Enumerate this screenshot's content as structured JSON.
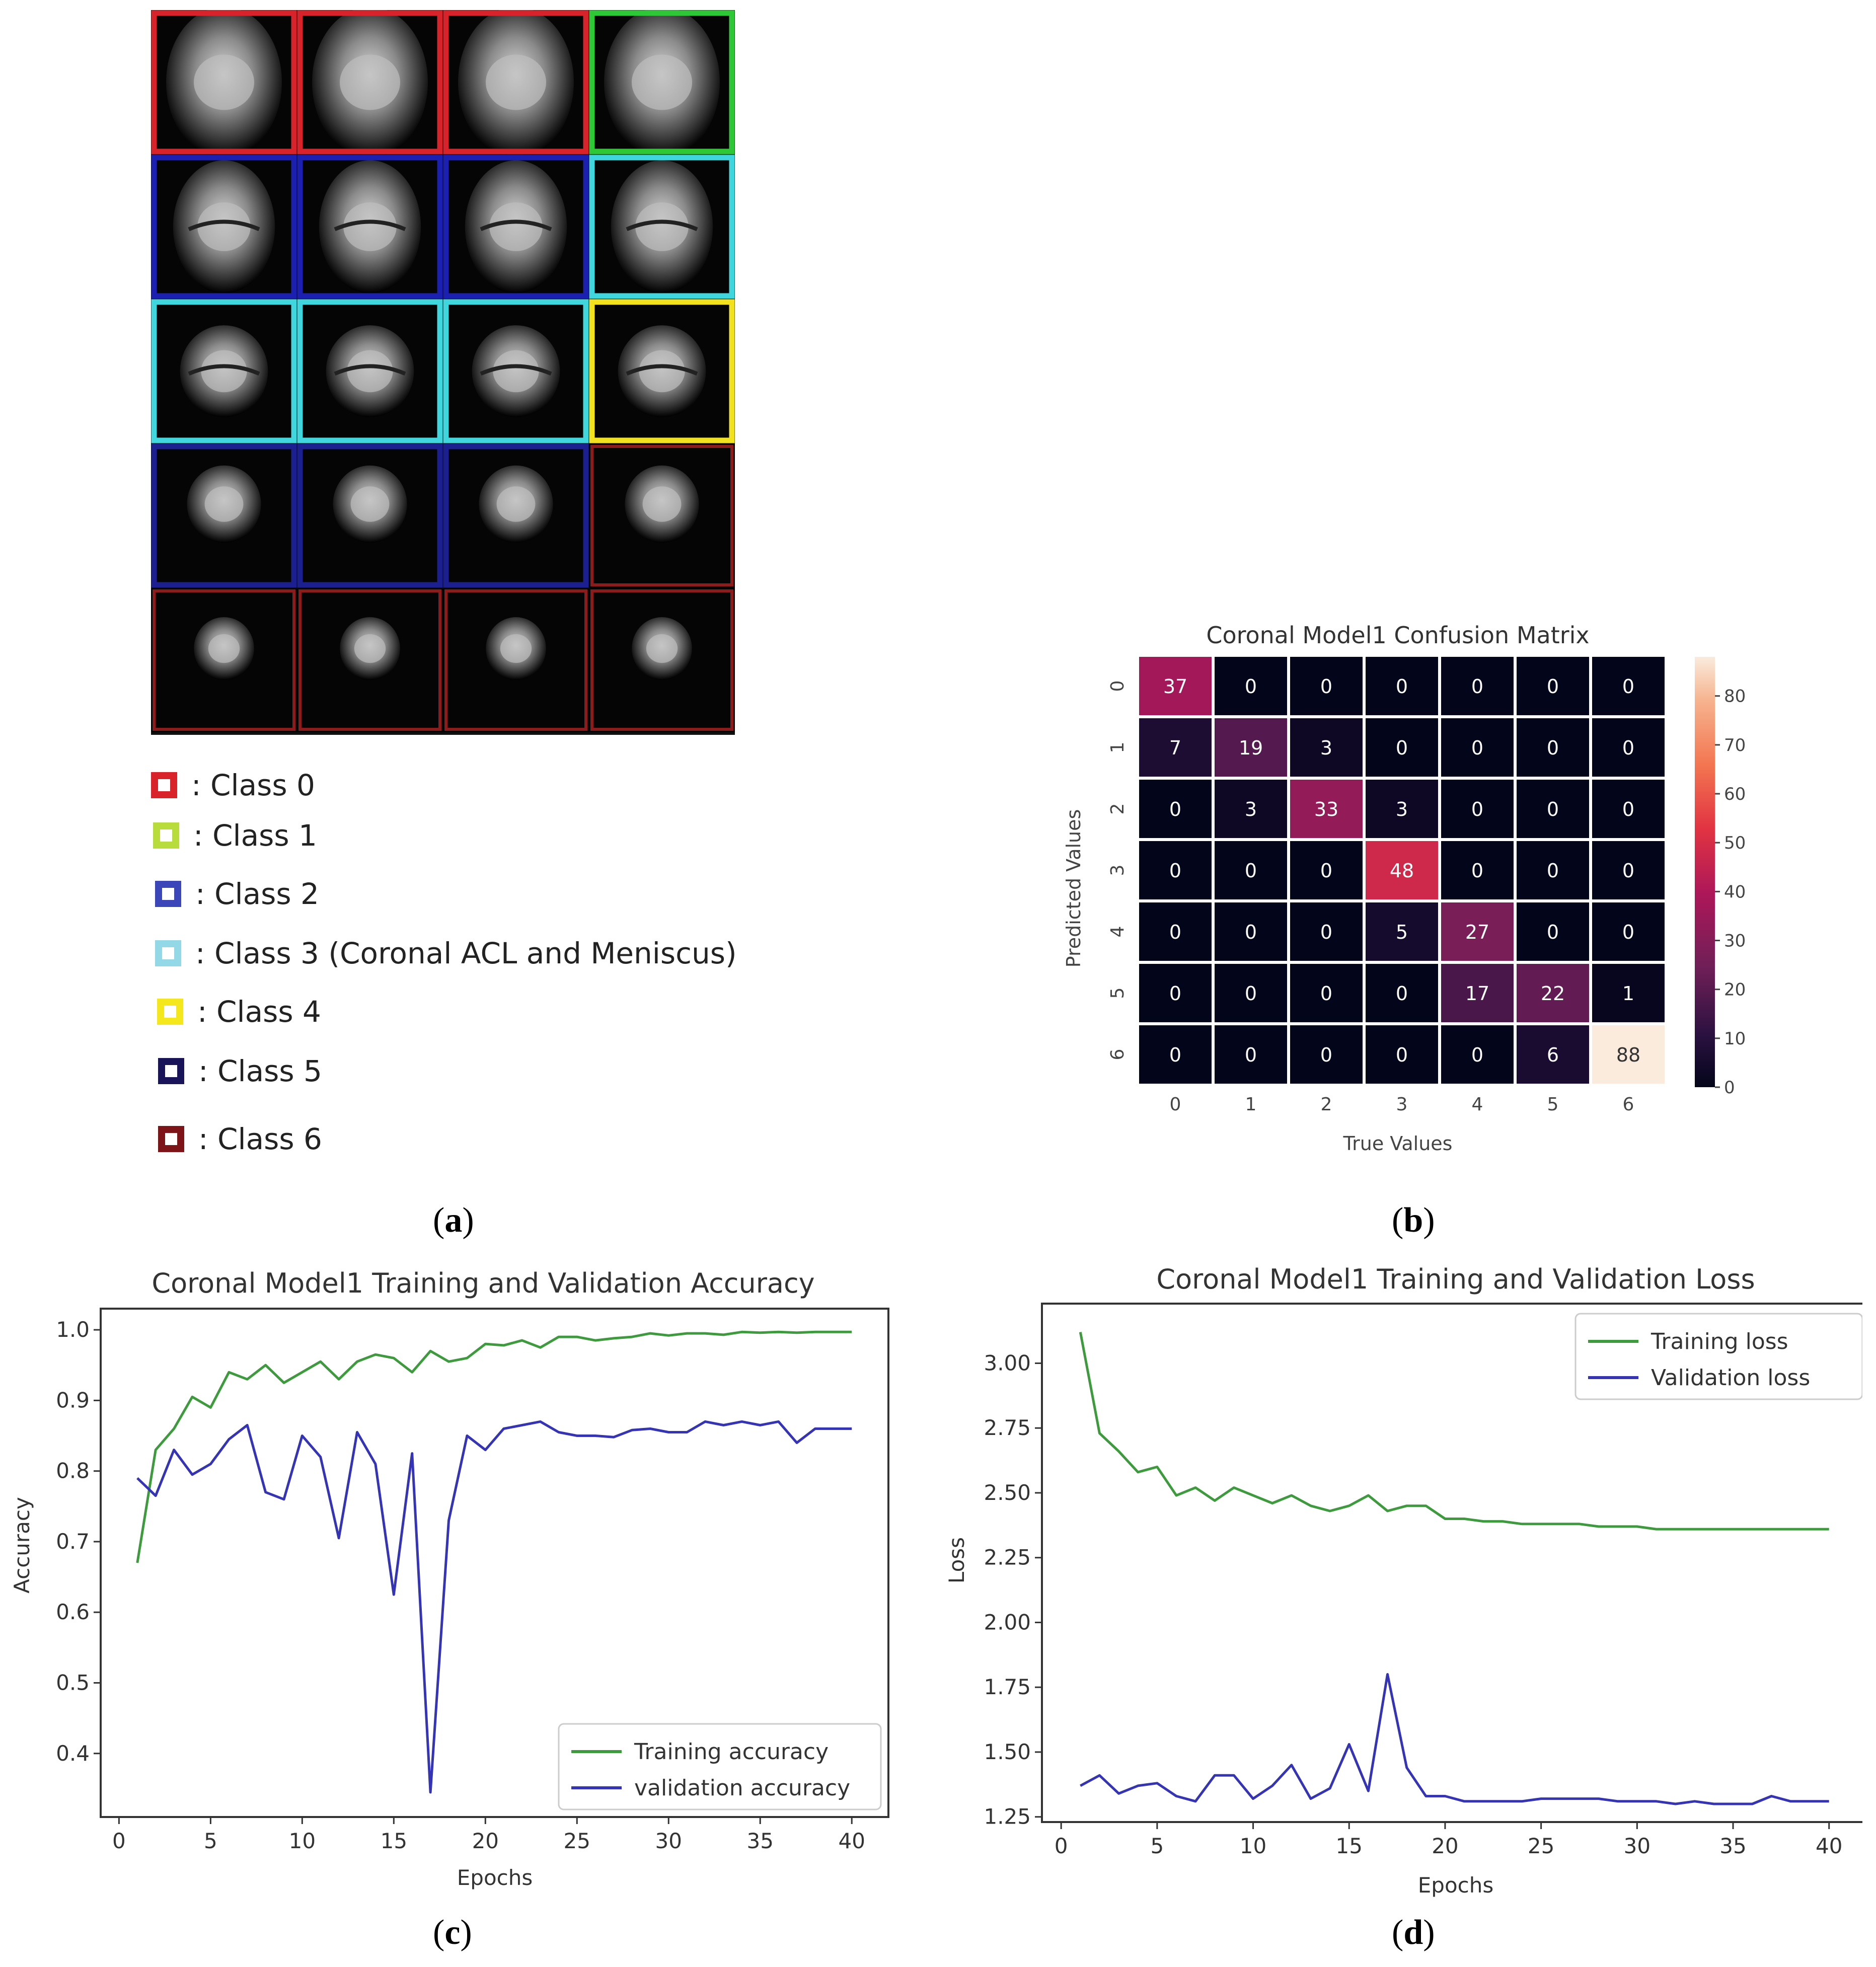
{
  "panel_a": {
    "caption": "a",
    "grid_border_colors": [
      [
        "#d9232b",
        "#d9232b",
        "#d9232b",
        "#2ec836"
      ],
      [
        "#1c20b0",
        "#1c20b0",
        "#1c20b0",
        "#3fd6dd"
      ],
      [
        "#3fd6dd",
        "#3fd6dd",
        "#3fd6dd",
        "#f2e21e"
      ],
      [
        "#1c1f8f",
        "#1c1f8f",
        "#1c1f8f",
        "#8c1c1c"
      ],
      [
        "#8c1c1c",
        "#8c1c1c",
        "#8c1c1c",
        "#8c1c1c"
      ]
    ],
    "legend": [
      {
        "label": ": Class 0",
        "color": "#d9232b"
      },
      {
        "label": ": Class 1",
        "color": "#b8dc3c"
      },
      {
        "label": ": Class 2",
        "color": "#3b46b8"
      },
      {
        "label": ": Class 3 (Coronal ACL and Meniscus)",
        "color": "#93d8e6"
      },
      {
        "label": ": Class 4",
        "color": "#f4e71c"
      },
      {
        "label": ": Class 5",
        "color": "#1a1458"
      },
      {
        "label": ": Class 6",
        "color": "#7c1418"
      }
    ]
  },
  "panel_b": {
    "caption": "b"
  },
  "panel_c": {
    "caption": "c"
  },
  "panel_d": {
    "caption": "d"
  },
  "chart_data": [
    {
      "id": "confusion",
      "type": "heatmap",
      "title": "Coronal Model1 Confusion Matrix",
      "xlabel": "True Values",
      "ylabel": "Predicted Values",
      "x_ticks": [
        "0",
        "1",
        "2",
        "3",
        "4",
        "5",
        "6"
      ],
      "y_ticks": [
        "0",
        "1",
        "2",
        "3",
        "4",
        "5",
        "6"
      ],
      "matrix": [
        [
          37,
          0,
          0,
          0,
          0,
          0,
          0
        ],
        [
          7,
          19,
          3,
          0,
          0,
          0,
          0
        ],
        [
          0,
          3,
          33,
          3,
          0,
          0,
          0
        ],
        [
          0,
          0,
          0,
          48,
          0,
          0,
          0
        ],
        [
          0,
          0,
          0,
          5,
          27,
          0,
          0
        ],
        [
          0,
          0,
          0,
          0,
          17,
          22,
          1
        ],
        [
          0,
          0,
          0,
          0,
          0,
          6,
          88
        ]
      ],
      "colorbar_range": [
        0,
        88
      ],
      "colorbar_ticks": [
        0,
        10,
        20,
        30,
        40,
        50,
        60,
        70,
        80
      ]
    },
    {
      "id": "accuracy",
      "type": "line",
      "title": "Coronal Model1 Training and Validation Accuracy",
      "xlabel": "Epochs",
      "ylabel": "Accuracy",
      "xlim": [
        -1,
        42
      ],
      "ylim": [
        0.31,
        1.03
      ],
      "x_ticks": [
        0,
        5,
        10,
        15,
        20,
        25,
        30,
        35,
        40
      ],
      "y_ticks": [
        0.4,
        0.5,
        0.6,
        0.7,
        0.8,
        0.9,
        1.0
      ],
      "y_tick_labels": [
        "0.4",
        "0.5",
        "0.6",
        "0.7",
        "0.8",
        "0.9",
        "1.0"
      ],
      "legend_position": "lower-right",
      "x": [
        1,
        2,
        3,
        4,
        5,
        6,
        7,
        8,
        9,
        10,
        11,
        12,
        13,
        14,
        15,
        16,
        17,
        18,
        19,
        20,
        21,
        22,
        23,
        24,
        25,
        26,
        27,
        28,
        29,
        30,
        31,
        32,
        33,
        34,
        35,
        36,
        37,
        38,
        39,
        40
      ],
      "series": [
        {
          "name": "Training accuracy",
          "color": "#3d9a3d",
          "values": [
            0.67,
            0.83,
            0.86,
            0.905,
            0.89,
            0.94,
            0.93,
            0.95,
            0.925,
            0.94,
            0.955,
            0.93,
            0.955,
            0.965,
            0.96,
            0.94,
            0.97,
            0.955,
            0.96,
            0.98,
            0.978,
            0.985,
            0.975,
            0.99,
            0.99,
            0.985,
            0.988,
            0.99,
            0.995,
            0.992,
            0.995,
            0.995,
            0.993,
            0.997,
            0.996,
            0.997,
            0.996,
            0.997,
            0.997,
            0.997
          ]
        },
        {
          "name": "validation accuracy",
          "color": "#3434b4",
          "values": [
            0.79,
            0.765,
            0.83,
            0.795,
            0.81,
            0.845,
            0.865,
            0.77,
            0.76,
            0.85,
            0.82,
            0.705,
            0.855,
            0.81,
            0.625,
            0.825,
            0.345,
            0.73,
            0.85,
            0.83,
            0.86,
            0.865,
            0.87,
            0.855,
            0.85,
            0.85,
            0.848,
            0.858,
            0.86,
            0.855,
            0.855,
            0.87,
            0.865,
            0.87,
            0.865,
            0.87,
            0.84,
            0.86,
            0.86,
            0.86
          ]
        }
      ]
    },
    {
      "id": "loss",
      "type": "line",
      "title": "Coronal Model1 Training and Validation Loss",
      "xlabel": "Epochs",
      "ylabel": "Loss",
      "xlim": [
        -1,
        42
      ],
      "ylim": [
        1.23,
        3.23
      ],
      "x_ticks": [
        0,
        5,
        10,
        15,
        20,
        25,
        30,
        35,
        40
      ],
      "y_ticks": [
        1.25,
        1.5,
        1.75,
        2.0,
        2.25,
        2.5,
        2.75,
        3.0
      ],
      "y_tick_labels": [
        "1.25",
        "1.50",
        "1.75",
        "2.00",
        "2.25",
        "2.50",
        "2.75",
        "3.00"
      ],
      "legend_position": "upper-right",
      "x": [
        1,
        2,
        3,
        4,
        5,
        6,
        7,
        8,
        9,
        10,
        11,
        12,
        13,
        14,
        15,
        16,
        17,
        18,
        19,
        20,
        21,
        22,
        23,
        24,
        25,
        26,
        27,
        28,
        29,
        30,
        31,
        32,
        33,
        34,
        35,
        36,
        37,
        38,
        39,
        40
      ],
      "series": [
        {
          "name": "Training loss",
          "color": "#3d9a3d",
          "values": [
            3.12,
            2.73,
            2.66,
            2.58,
            2.6,
            2.49,
            2.52,
            2.47,
            2.52,
            2.49,
            2.46,
            2.49,
            2.45,
            2.43,
            2.45,
            2.49,
            2.43,
            2.45,
            2.45,
            2.4,
            2.4,
            2.39,
            2.39,
            2.38,
            2.38,
            2.38,
            2.38,
            2.37,
            2.37,
            2.37,
            2.36,
            2.36,
            2.36,
            2.36,
            2.36,
            2.36,
            2.36,
            2.36,
            2.36,
            2.36
          ]
        },
        {
          "name": "Validation loss",
          "color": "#3434b4",
          "values": [
            1.37,
            1.41,
            1.34,
            1.37,
            1.38,
            1.33,
            1.31,
            1.41,
            1.41,
            1.32,
            1.37,
            1.45,
            1.32,
            1.36,
            1.53,
            1.35,
            1.8,
            1.44,
            1.33,
            1.33,
            1.31,
            1.31,
            1.31,
            1.31,
            1.32,
            1.32,
            1.32,
            1.32,
            1.31,
            1.31,
            1.31,
            1.3,
            1.31,
            1.3,
            1.3,
            1.3,
            1.33,
            1.31,
            1.31,
            1.31
          ]
        }
      ]
    }
  ]
}
